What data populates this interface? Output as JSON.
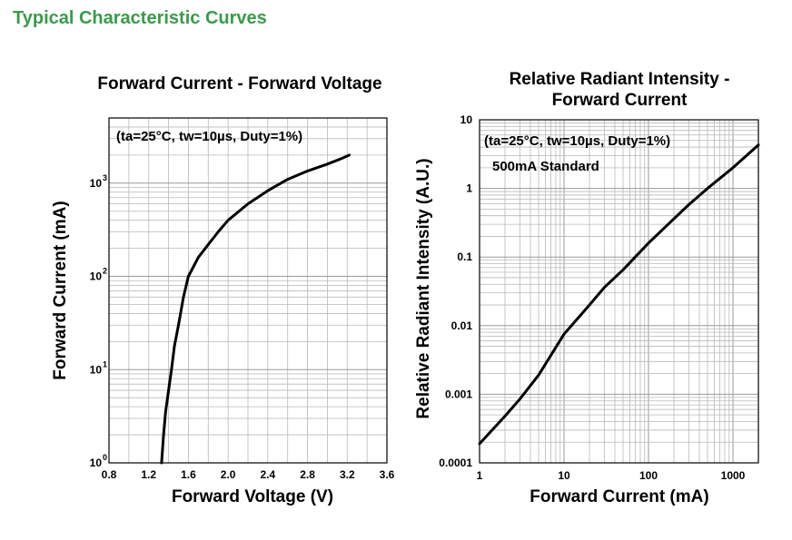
{
  "page": {
    "heading": "Typical Characteristic Curves"
  },
  "chart_data": [
    {
      "type": "line",
      "title": "Forward Current - Forward Voltage",
      "xlabel": "Forward Voltage (V)",
      "ylabel": "Forward Current (mA)",
      "annotation": "(ta=25°C, tw=10µs, Duty=1%)",
      "x_scale": "linear",
      "y_scale": "log",
      "xlim": [
        0.8,
        3.6
      ],
      "ylim": [
        1,
        5000
      ],
      "x_ticks": [
        "0.8",
        "1.2",
        "1.6",
        "2.0",
        "2.4",
        "2.8",
        "3.2",
        "3.6"
      ],
      "y_ticks": [
        {
          "base": "10",
          "exp": "0",
          "value": 1
        },
        {
          "base": "10",
          "exp": "1",
          "value": 10
        },
        {
          "base": "10",
          "exp": "2",
          "value": 100
        },
        {
          "base": "10",
          "exp": "3",
          "value": 1000
        }
      ],
      "grid": true,
      "series": [
        {
          "x": [
            1.33,
            1.35,
            1.37,
            1.4,
            1.43,
            1.46,
            1.5,
            1.55,
            1.6,
            1.7,
            1.8,
            1.9,
            2.0,
            2.2,
            2.4,
            2.6,
            2.8,
            3.0,
            3.15,
            3.22
          ],
          "y": [
            1,
            2,
            3.5,
            6,
            10,
            18,
            30,
            60,
            100,
            160,
            220,
            300,
            400,
            600,
            830,
            1100,
            1350,
            1600,
            1850,
            2000
          ]
        }
      ]
    },
    {
      "type": "line",
      "title": "Relative Radiant Intensity - Forward Current",
      "title_lines": [
        "Relative Radiant Intensity -",
        "Forward Current"
      ],
      "xlabel": "Forward Current (mA)",
      "ylabel": "Relative Radiant Intensity (A.U.)",
      "annotation": "(ta=25°C, tw=10µs, Duty=1%)",
      "annotation2": "500mA Standard",
      "x_scale": "log",
      "y_scale": "log",
      "xlim": [
        1,
        2000
      ],
      "ylim": [
        0.0001,
        10
      ],
      "x_ticks": [
        {
          "label": "1",
          "value": 1
        },
        {
          "label": "10",
          "value": 10
        },
        {
          "label": "100",
          "value": 100
        },
        {
          "label": "1000",
          "value": 1000
        }
      ],
      "y_ticks": [
        {
          "label": "0.0001",
          "value": 0.0001
        },
        {
          "label": "0.001",
          "value": 0.001
        },
        {
          "label": "0.01",
          "value": 0.01
        },
        {
          "label": "0.1",
          "value": 0.1
        },
        {
          "label": "1",
          "value": 1
        },
        {
          "label": "10",
          "value": 10
        }
      ],
      "grid": true,
      "series": [
        {
          "x": [
            1,
            2,
            3,
            5,
            10,
            20,
            30,
            50,
            100,
            200,
            300,
            500,
            1000,
            2000
          ],
          "y": [
            0.00019,
            0.00048,
            0.00085,
            0.0019,
            0.0075,
            0.02,
            0.036,
            0.065,
            0.16,
            0.36,
            0.58,
            1.0,
            2.0,
            4.3
          ]
        }
      ]
    }
  ]
}
